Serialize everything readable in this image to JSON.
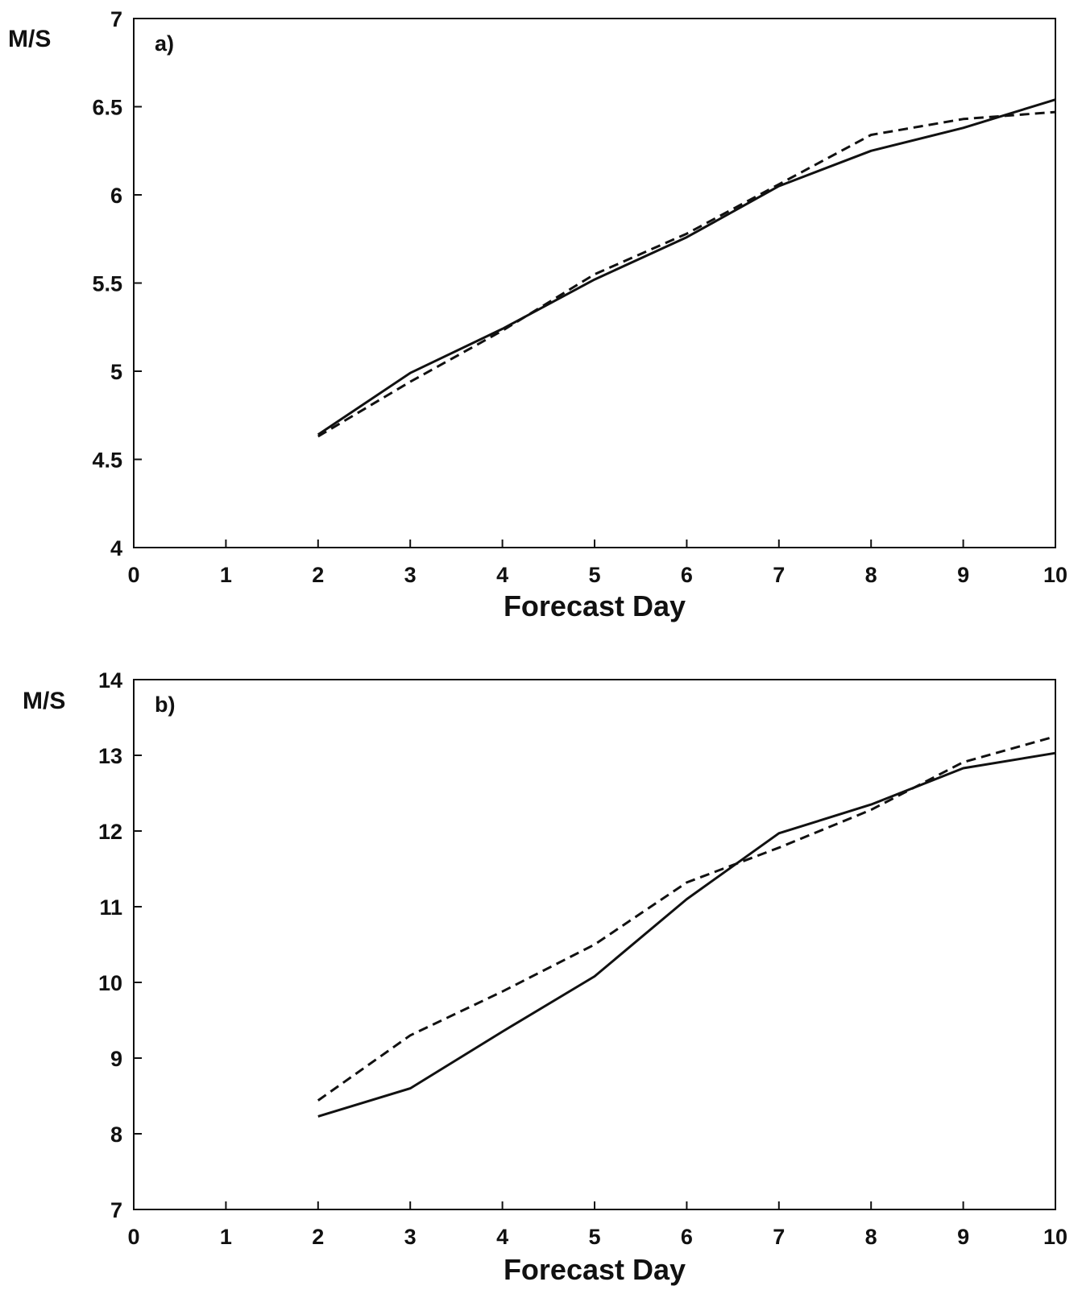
{
  "chart_data": [
    {
      "type": "line",
      "panel_label": "a)",
      "ylabel": "M/S",
      "xlabel": "Forecast Day",
      "xlim": [
        0,
        10
      ],
      "ylim": [
        4,
        7
      ],
      "xticks": [
        0,
        1,
        2,
        3,
        4,
        5,
        6,
        7,
        8,
        9,
        10
      ],
      "yticks": [
        4,
        4.5,
        5,
        5.5,
        6,
        6.5,
        7
      ],
      "grid": false,
      "series": [
        {
          "style": "solid",
          "x": [
            2,
            3,
            4,
            5,
            6,
            7,
            8,
            9,
            10
          ],
          "values": [
            4.64,
            4.99,
            5.24,
            5.52,
            5.76,
            6.05,
            6.25,
            6.38,
            6.54
          ]
        },
        {
          "style": "dashed",
          "x": [
            2,
            3,
            4,
            5,
            6,
            7,
            8,
            9,
            10
          ],
          "values": [
            4.63,
            4.94,
            5.23,
            5.55,
            5.78,
            6.06,
            6.34,
            6.43,
            6.47
          ]
        }
      ]
    },
    {
      "type": "line",
      "panel_label": "b)",
      "ylabel": "M/S",
      "xlabel": "Forecast Day",
      "xlim": [
        0,
        10
      ],
      "ylim": [
        7,
        14
      ],
      "xticks": [
        0,
        1,
        2,
        3,
        4,
        5,
        6,
        7,
        8,
        9,
        10
      ],
      "yticks": [
        7,
        8,
        9,
        10,
        11,
        12,
        13,
        14
      ],
      "grid": false,
      "series": [
        {
          "style": "solid",
          "x": [
            2,
            3,
            4,
            5,
            6,
            7,
            8,
            9,
            10
          ],
          "values": [
            8.23,
            8.6,
            9.35,
            10.08,
            11.1,
            11.97,
            12.35,
            12.83,
            13.03
          ]
        },
        {
          "style": "dashed",
          "x": [
            2,
            3,
            4,
            5,
            6,
            7,
            8,
            9,
            10
          ],
          "values": [
            8.44,
            9.3,
            9.88,
            10.5,
            11.32,
            11.78,
            12.28,
            12.91,
            13.25
          ]
        }
      ]
    }
  ]
}
